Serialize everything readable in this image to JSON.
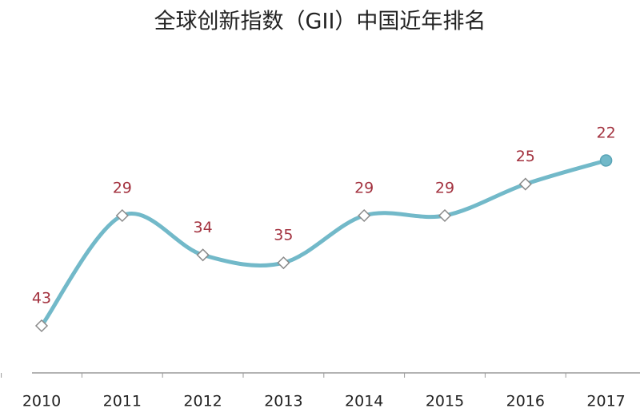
{
  "chart_data": {
    "type": "line",
    "title": "全球创新指数（GII）中国近年排名",
    "categories": [
      "2010",
      "2011",
      "2012",
      "2013",
      "2014",
      "2015",
      "2016",
      "2017"
    ],
    "values": [
      43,
      29,
      34,
      35,
      29,
      29,
      25,
      22
    ],
    "color": "#72b9c9",
    "label_color": "#a3323f",
    "y_inverted": true
  }
}
